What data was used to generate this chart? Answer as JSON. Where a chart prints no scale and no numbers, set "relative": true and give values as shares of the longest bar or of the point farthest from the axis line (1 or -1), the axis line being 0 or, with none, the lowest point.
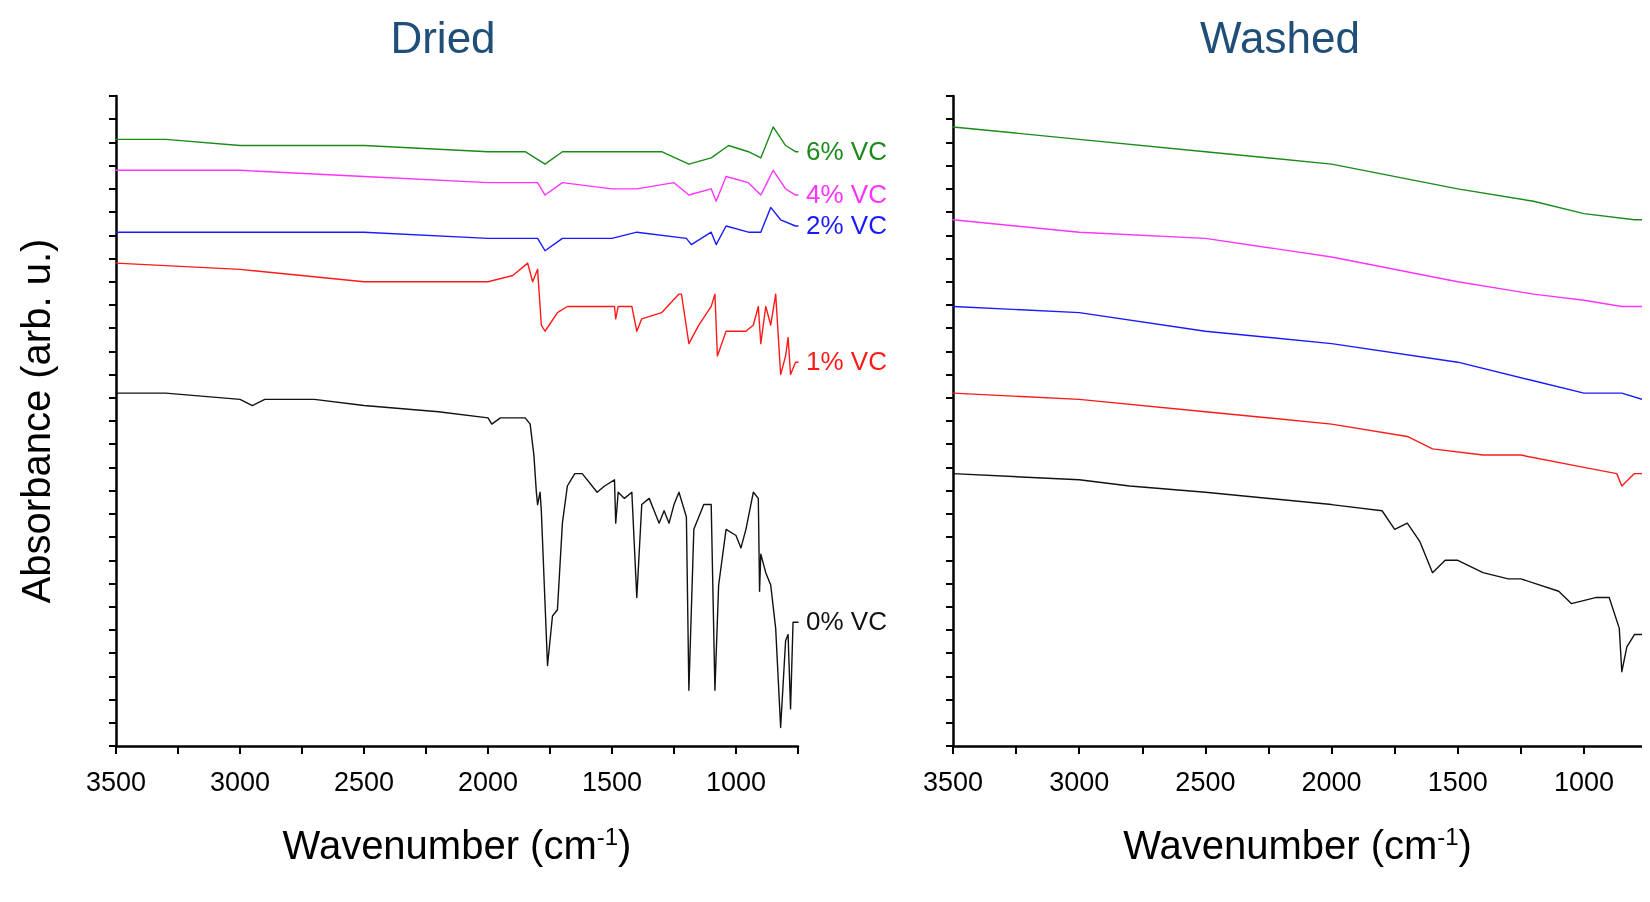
{
  "chart_data": [
    {
      "type": "line",
      "title": "Dried",
      "xlabel": "Wavenumber (cm$^{-1}$)",
      "ylabel": "Absorbance (arb. u.)",
      "relative": true,
      "tick_labels": "x",
      "xlim": [
        3500,
        750
      ],
      "xticks": [
        3500,
        {
          "value": 3250,
          "label": null
        },
        3000,
        {
          "value": 2750,
          "label": null
        },
        2500,
        {
          "value": 2250,
          "label": null
        },
        2000,
        {
          "value": 1750,
          "label": null
        },
        1500,
        {
          "value": 1250,
          "label": null
        },
        1000,
        {
          "value": 750,
          "label": null
        }
      ],
      "series": [
        {
          "name": "6% VC",
          "color": "#1a8a1a",
          "x": [
            3500,
            3300,
            3000,
            2500,
            2000,
            1850,
            1770,
            1700,
            1500,
            1400,
            1300,
            1190,
            1100,
            1030,
            950,
            900,
            850,
            800,
            760,
            750
          ],
          "values": [
            0.98,
            0.98,
            0.97,
            0.97,
            0.96,
            0.96,
            0.94,
            0.96,
            0.96,
            0.96,
            0.96,
            0.94,
            0.95,
            0.97,
            0.96,
            0.95,
            1.0,
            0.97,
            0.96,
            0.96
          ]
        },
        {
          "name": "4% VC",
          "color": "#ff33ff",
          "x": [
            3500,
            3300,
            3000,
            2500,
            2000,
            1800,
            1770,
            1700,
            1500,
            1400,
            1250,
            1190,
            1100,
            1080,
            1040,
            950,
            900,
            850,
            800,
            760,
            750
          ],
          "values": [
            0.93,
            0.93,
            0.93,
            0.92,
            0.91,
            0.91,
            0.89,
            0.91,
            0.9,
            0.9,
            0.91,
            0.89,
            0.9,
            0.88,
            0.92,
            0.91,
            0.89,
            0.93,
            0.9,
            0.89,
            0.89
          ]
        },
        {
          "name": "2% VC",
          "color": "#1a1aff",
          "x": [
            3500,
            3000,
            2500,
            2000,
            1800,
            1770,
            1700,
            1500,
            1400,
            1200,
            1180,
            1100,
            1080,
            1040,
            950,
            900,
            860,
            820,
            760,
            750
          ],
          "values": [
            0.83,
            0.83,
            0.83,
            0.82,
            0.82,
            0.8,
            0.82,
            0.82,
            0.83,
            0.82,
            0.81,
            0.83,
            0.81,
            0.84,
            0.83,
            0.83,
            0.87,
            0.85,
            0.84,
            0.84
          ]
        },
        {
          "name": "1% VC",
          "color": "#ff1a1a",
          "x": [
            3500,
            3000,
            2500,
            2200,
            2000,
            1900,
            1840,
            1820,
            1800,
            1785,
            1770,
            1720,
            1680,
            1600,
            1500,
            1490,
            1485,
            1475,
            1420,
            1400,
            1380,
            1300,
            1230,
            1220,
            1190,
            1150,
            1100,
            1085,
            1075,
            1040,
            960,
            930,
            910,
            900,
            880,
            860,
            840,
            820,
            800,
            790,
            780,
            760,
            750
          ],
          "values": [
            0.78,
            0.77,
            0.75,
            0.75,
            0.75,
            0.76,
            0.78,
            0.75,
            0.77,
            0.68,
            0.67,
            0.7,
            0.71,
            0.71,
            0.71,
            0.71,
            0.69,
            0.71,
            0.71,
            0.67,
            0.69,
            0.7,
            0.73,
            0.73,
            0.65,
            0.68,
            0.71,
            0.73,
            0.63,
            0.67,
            0.67,
            0.68,
            0.71,
            0.65,
            0.71,
            0.68,
            0.73,
            0.6,
            0.63,
            0.66,
            0.6,
            0.62,
            0.62
          ]
        },
        {
          "name": "0% VC",
          "color": "#111111",
          "x": [
            3500,
            3300,
            3000,
            2950,
            2900,
            2700,
            2500,
            2200,
            2000,
            1985,
            1950,
            1900,
            1850,
            1830,
            1815,
            1805,
            1800,
            1790,
            1785,
            1760,
            1740,
            1720,
            1700,
            1680,
            1650,
            1620,
            1560,
            1530,
            1490,
            1485,
            1475,
            1450,
            1420,
            1400,
            1380,
            1350,
            1310,
            1290,
            1270,
            1250,
            1230,
            1200,
            1190,
            1170,
            1130,
            1100,
            1085,
            1070,
            1040,
            1000,
            980,
            960,
            930,
            910,
            905,
            900,
            880,
            860,
            840,
            820,
            800,
            790,
            780,
            770,
            750
          ],
          "values": [
            0.57,
            0.57,
            0.56,
            0.55,
            0.56,
            0.56,
            0.55,
            0.54,
            0.53,
            0.52,
            0.53,
            0.53,
            0.53,
            0.52,
            0.47,
            0.41,
            0.39,
            0.41,
            0.38,
            0.13,
            0.21,
            0.22,
            0.36,
            0.42,
            0.44,
            0.44,
            0.41,
            0.42,
            0.43,
            0.36,
            0.41,
            0.4,
            0.41,
            0.24,
            0.39,
            0.4,
            0.36,
            0.38,
            0.36,
            0.39,
            0.41,
            0.37,
            0.09,
            0.35,
            0.39,
            0.39,
            0.09,
            0.26,
            0.35,
            0.34,
            0.32,
            0.35,
            0.41,
            0.4,
            0.25,
            0.31,
            0.28,
            0.26,
            0.19,
            0.03,
            0.17,
            0.18,
            0.06,
            0.2,
            0.2
          ]
        }
      ]
    },
    {
      "type": "line",
      "title": "Washed",
      "xlabel": "Wavenumber (cm$^{-1}$)",
      "relative": true,
      "tick_labels": "x",
      "xlim": [
        3500,
        770
      ],
      "xticks": [
        3500,
        {
          "value": 3250,
          "label": null
        },
        3000,
        {
          "value": 2750,
          "label": null
        },
        2500,
        {
          "value": 2250,
          "label": null
        },
        2000,
        {
          "value": 1750,
          "label": null
        },
        1500,
        {
          "value": 1250,
          "label": null
        },
        1000
      ],
      "series": [
        {
          "color": "#1a8a1a",
          "x": [
            3500,
            3000,
            2500,
            2000,
            1500,
            1200,
            1000,
            800,
            770
          ],
          "values": [
            1.0,
            0.98,
            0.96,
            0.94,
            0.9,
            0.88,
            0.86,
            0.85,
            0.85
          ]
        },
        {
          "color": "#ff33ff",
          "x": [
            3500,
            3000,
            2500,
            2000,
            1500,
            1200,
            1000,
            850,
            770
          ],
          "values": [
            0.85,
            0.83,
            0.82,
            0.79,
            0.75,
            0.73,
            0.72,
            0.71,
            0.71
          ]
        },
        {
          "color": "#1a1aff",
          "x": [
            3500,
            3000,
            2500,
            2000,
            1500,
            1200,
            1000,
            850,
            770
          ],
          "values": [
            0.71,
            0.7,
            0.67,
            0.65,
            0.62,
            0.59,
            0.57,
            0.57,
            0.56
          ]
        },
        {
          "color": "#ff1a1a",
          "x": [
            3500,
            3000,
            2500,
            2000,
            1700,
            1600,
            1400,
            1250,
            1000,
            870,
            850,
            800,
            770
          ],
          "values": [
            0.57,
            0.56,
            0.54,
            0.52,
            0.5,
            0.48,
            0.47,
            0.47,
            0.45,
            0.44,
            0.42,
            0.44,
            0.44
          ]
        },
        {
          "color": "#111111",
          "x": [
            3500,
            3000,
            2800,
            2500,
            2000,
            1800,
            1750,
            1700,
            1650,
            1600,
            1550,
            1500,
            1400,
            1300,
            1250,
            1100,
            1050,
            950,
            900,
            860,
            850,
            830,
            800,
            770
          ],
          "values": [
            0.44,
            0.43,
            0.42,
            0.41,
            0.39,
            0.38,
            0.35,
            0.36,
            0.33,
            0.28,
            0.3,
            0.3,
            0.28,
            0.27,
            0.27,
            0.25,
            0.23,
            0.24,
            0.24,
            0.19,
            0.12,
            0.16,
            0.18,
            0.18
          ]
        }
      ]
    }
  ]
}
